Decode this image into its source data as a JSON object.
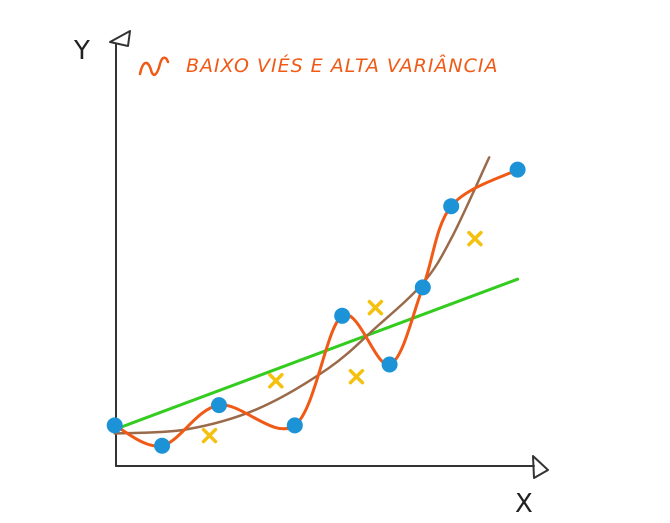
{
  "axes": {
    "x_label": "X",
    "y_label": "Y"
  },
  "legend": {
    "text": "BAIXO VIÉS E ALTA VARIÂNCIA"
  },
  "colors": {
    "axis": "#333333",
    "training_point": "#1b93d6",
    "test_point": "#f5c10f",
    "overfit_curve": "#f05a16",
    "brown_curve": "#9a6a4a",
    "linear_fit": "#33cc1f",
    "legend_text": "#f05a16"
  },
  "chart_data": {
    "type": "scatter",
    "x_range": [
      0,
      10
    ],
    "y_range": [
      0,
      10
    ],
    "series": [
      {
        "marker": "circle",
        "points": [
          [
            0.5,
            1.0
          ],
          [
            1.5,
            0.5
          ],
          [
            2.7,
            1.5
          ],
          [
            4.3,
            1.0
          ],
          [
            5.3,
            3.7
          ],
          [
            6.3,
            2.5
          ],
          [
            7.0,
            4.4
          ],
          [
            7.6,
            6.4
          ],
          [
            9.0,
            7.3
          ]
        ]
      },
      {
        "marker": "x",
        "points": [
          [
            2.5,
            0.75
          ],
          [
            3.9,
            2.1
          ],
          [
            5.6,
            2.2
          ],
          [
            6.0,
            3.9
          ],
          [
            8.1,
            5.6
          ]
        ]
      },
      {
        "line_style": "overfit",
        "points": [
          [
            0.5,
            1.0
          ],
          [
            1.5,
            0.5
          ],
          [
            2.7,
            1.5
          ],
          [
            4.3,
            1.0
          ],
          [
            5.3,
            3.7
          ],
          [
            6.3,
            2.5
          ],
          [
            7.0,
            4.4
          ],
          [
            7.6,
            6.4
          ],
          [
            9.0,
            7.3
          ]
        ]
      },
      {
        "line_style": "brown-smooth",
        "points": [
          [
            0.5,
            0.8
          ],
          [
            2.0,
            0.9
          ],
          [
            3.5,
            1.4
          ],
          [
            5.0,
            2.4
          ],
          [
            6.0,
            3.4
          ],
          [
            7.0,
            4.5
          ],
          [
            7.6,
            5.6
          ],
          [
            8.4,
            7.6
          ]
        ]
      },
      {
        "line_style": "linear",
        "points": [
          [
            0.5,
            0.9
          ],
          [
            9.0,
            4.6
          ]
        ]
      }
    ]
  }
}
